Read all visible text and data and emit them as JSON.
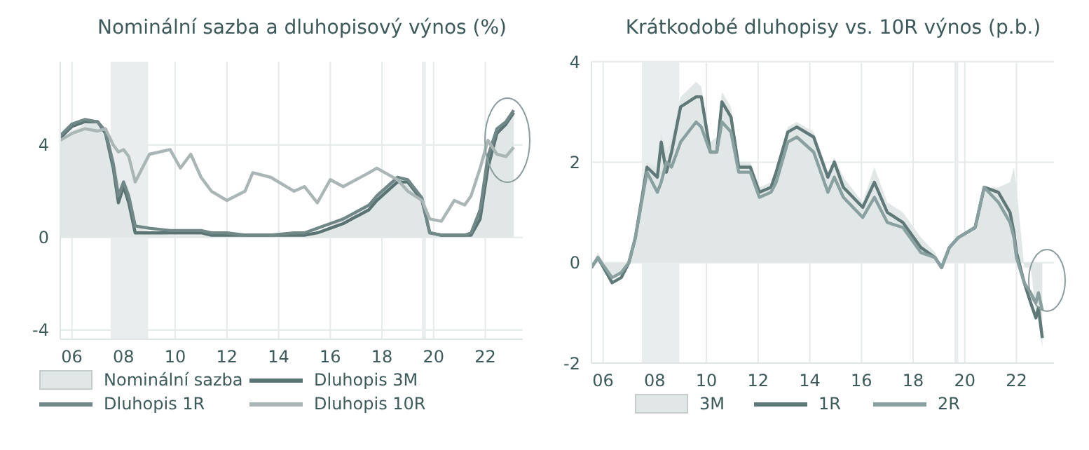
{
  "chart_data": [
    {
      "type": "line",
      "title": "Nominální sazba a dluhopisový výnos (%)",
      "x": [
        2005.55,
        2006,
        2006.5,
        2007,
        2007.3,
        2007.6,
        2007.8,
        2008,
        2008.2,
        2008.45,
        2009,
        2009.8,
        2010.2,
        2010.6,
        2011,
        2011.4,
        2012,
        2012.7,
        2013,
        2013.7,
        2014.6,
        2015,
        2015.5,
        2016,
        2016.5,
        2017.5,
        2017.8,
        2018.6,
        2019,
        2019.55,
        2019.85,
        2020.3,
        2020.8,
        2021.2,
        2021.45,
        2021.8,
        2022.1,
        2022.45,
        2022.8,
        2023.1
      ],
      "series": [
        {
          "name": "Nominální sazba",
          "type": "area",
          "color": "#e1e6e6",
          "values": [
            4.2,
            4.6,
            4.9,
            5.0,
            4.6,
            3.5,
            2.5,
            2.0,
            1.6,
            0.5,
            0.2,
            0.1,
            0.1,
            0.1,
            0.1,
            0.1,
            0.1,
            0.1,
            0.1,
            0.1,
            0.1,
            0.1,
            0.2,
            0.5,
            0.8,
            1.5,
            1.8,
            2.5,
            2.4,
            1.6,
            0.2,
            0.1,
            0.1,
            0.1,
            0.1,
            1.0,
            3.0,
            4.5,
            5.0,
            5.4
          ]
        },
        {
          "name": "Dluhopis 3M",
          "color": "#5a7474",
          "values": [
            4.3,
            4.8,
            5.0,
            5.0,
            4.5,
            3.0,
            1.5,
            2.2,
            1.5,
            0.2,
            0.2,
            0.2,
            0.2,
            0.2,
            0.2,
            0.1,
            0.1,
            0.1,
            0.1,
            0.1,
            0.1,
            0.1,
            0.2,
            0.4,
            0.6,
            1.2,
            1.6,
            2.4,
            2.4,
            1.6,
            0.2,
            0.1,
            0.1,
            0.1,
            0.1,
            0.8,
            3.0,
            4.5,
            4.9,
            5.4
          ]
        },
        {
          "name": "Dluhopis 1R",
          "color": "#718888",
          "values": [
            4.4,
            4.9,
            5.1,
            5.0,
            4.6,
            3.2,
            1.8,
            2.4,
            1.8,
            0.5,
            0.4,
            0.3,
            0.3,
            0.3,
            0.3,
            0.2,
            0.2,
            0.1,
            0.1,
            0.1,
            0.2,
            0.2,
            0.4,
            0.6,
            0.8,
            1.4,
            1.8,
            2.6,
            2.5,
            1.7,
            0.2,
            0.1,
            0.1,
            0.1,
            0.2,
            1.2,
            3.5,
            4.7,
            5.0,
            5.5
          ]
        },
        {
          "name": "Dluhopis 10R",
          "color": "#aab6b6",
          "values": [
            4.2,
            4.5,
            4.7,
            4.6,
            4.7,
            4.0,
            3.7,
            3.8,
            3.5,
            2.4,
            3.6,
            3.8,
            3.0,
            3.6,
            2.6,
            2.0,
            1.6,
            2.0,
            2.8,
            2.6,
            2.0,
            2.2,
            1.5,
            2.5,
            2.2,
            2.8,
            3.0,
            2.5,
            2.0,
            1.6,
            0.8,
            0.7,
            1.6,
            1.4,
            1.8,
            3.0,
            4.2,
            3.6,
            3.5,
            3.9
          ]
        }
      ],
      "xlim": [
        2005.55,
        2023.45
      ],
      "xticks": [
        {
          "value": 2006,
          "label": "06"
        },
        {
          "value": 2008,
          "label": "08"
        },
        {
          "value": 2010,
          "label": "10"
        },
        {
          "value": 2012,
          "label": "12"
        },
        {
          "value": 2014,
          "label": "14"
        },
        {
          "value": 2016,
          "label": "16"
        },
        {
          "value": 2018,
          "label": "18"
        },
        {
          "value": 2020,
          "label": "20"
        },
        {
          "value": 2022,
          "label": "22"
        }
      ],
      "ylim": [
        -4.4,
        7.6
      ],
      "yticks": [
        -4,
        0,
        4
      ],
      "bands": [
        {
          "axis": "x",
          "from": 2007.5,
          "to": 2008.95,
          "color": "#e9eded"
        },
        {
          "axis": "x",
          "from": 2019.55,
          "to": 2019.7,
          "color": "#e9eded"
        }
      ],
      "grid": true,
      "legend": "bottom"
    },
    {
      "type": "line",
      "title": "Krátkodobé dluhopisy vs. 10R výnos (p.b.)",
      "x": [
        2005.55,
        2005.8,
        2006.35,
        2006.7,
        2007,
        2007.25,
        2007.7,
        2008.1,
        2008.25,
        2008.45,
        2008.65,
        2009,
        2009.6,
        2009.8,
        2010.15,
        2010.4,
        2010.6,
        2010.95,
        2011.25,
        2011.7,
        2012.05,
        2012.5,
        2012.7,
        2013.15,
        2013.5,
        2014.15,
        2014.7,
        2014.95,
        2015.3,
        2016.05,
        2016.5,
        2017,
        2017.6,
        2018.3,
        2018.85,
        2019.1,
        2019.4,
        2019.75,
        2020.4,
        2020.75,
        2021.3,
        2021.75,
        2021.9,
        2022.0,
        2022.3,
        2022.55,
        2022.75,
        2022.85,
        2023.0
      ],
      "series": [
        {
          "name": "3M",
          "type": "area",
          "color": "#e1e6e6",
          "values": [
            -0.1,
            0.2,
            -0.3,
            -0.2,
            0.1,
            0.6,
            2.0,
            1.9,
            2.6,
            2.2,
            2.5,
            3.3,
            3.6,
            3.5,
            2.4,
            2.5,
            3.4,
            3.1,
            2.0,
            2.0,
            1.5,
            1.6,
            1.9,
            2.7,
            2.8,
            2.6,
            1.8,
            2.1,
            1.7,
            1.2,
            1.9,
            1.2,
            1.0,
            0.5,
            0.2,
            -0.1,
            0.3,
            0.5,
            0.7,
            1.5,
            1.5,
            1.6,
            1.9,
            1.5,
            -0.1,
            -0.1,
            -1.0,
            -1.2,
            -1.7
          ]
        },
        {
          "name": "1R",
          "color": "#5f7878",
          "values": [
            -0.1,
            0.1,
            -0.4,
            -0.3,
            0,
            0.5,
            1.9,
            1.7,
            2.4,
            1.8,
            2.2,
            3.1,
            3.3,
            3.3,
            2.2,
            2.2,
            3.2,
            2.9,
            1.9,
            1.9,
            1.4,
            1.5,
            1.8,
            2.6,
            2.7,
            2.5,
            1.7,
            2.0,
            1.5,
            1.1,
            1.6,
            1.0,
            0.8,
            0.3,
            0.1,
            -0.1,
            0.3,
            0.5,
            0.7,
            1.5,
            1.4,
            1.0,
            0.6,
            0.2,
            -0.4,
            -0.8,
            -1.1,
            -0.9,
            -1.5
          ]
        },
        {
          "name": "2R",
          "color": "#88a0a0",
          "values": [
            -0.1,
            0.1,
            -0.3,
            -0.2,
            0,
            0.5,
            1.8,
            1.4,
            1.6,
            2.0,
            1.9,
            2.4,
            2.8,
            2.7,
            2.2,
            2.2,
            2.8,
            2.6,
            1.8,
            1.8,
            1.3,
            1.4,
            1.6,
            2.4,
            2.5,
            2.2,
            1.4,
            1.7,
            1.3,
            0.9,
            1.3,
            0.8,
            0.7,
            0.2,
            0.1,
            -0.1,
            0.3,
            0.5,
            0.7,
            1.5,
            1.2,
            0.8,
            0.5,
            0.1,
            -0.4,
            -0.6,
            -0.8,
            -0.6,
            -0.95
          ]
        }
      ],
      "xlim": [
        2005.55,
        2023.45
      ],
      "xticks": [
        {
          "value": 2006,
          "label": "06"
        },
        {
          "value": 2008,
          "label": "08"
        },
        {
          "value": 2010,
          "label": "10"
        },
        {
          "value": 2012,
          "label": "12"
        },
        {
          "value": 2014,
          "label": "14"
        },
        {
          "value": 2016,
          "label": "16"
        },
        {
          "value": 2018,
          "label": "18"
        },
        {
          "value": 2020,
          "label": "20"
        },
        {
          "value": 2022,
          "label": "22"
        }
      ],
      "ylim": [
        -2,
        4
      ],
      "yticks": [
        -2,
        0,
        2,
        4
      ],
      "bands": [
        {
          "axis": "x",
          "from": 2007.5,
          "to": 2008.95,
          "color": "#e9eded"
        },
        {
          "axis": "x",
          "from": 2019.6,
          "to": 2019.75,
          "color": "#e9eded"
        }
      ],
      "grid": true,
      "legend": "bottom"
    }
  ]
}
